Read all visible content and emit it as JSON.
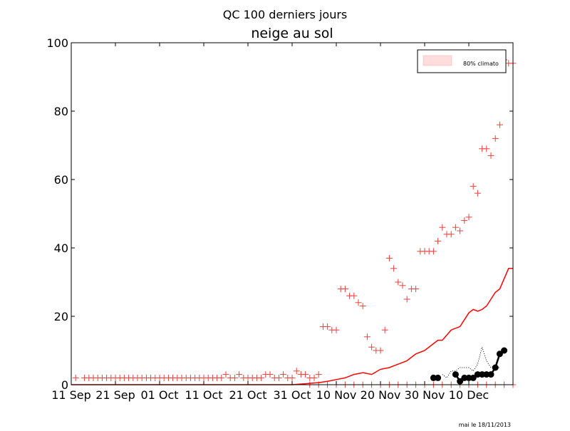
{
  "chart_data": {
    "type": "line",
    "suptitle": "QC 100 derniers jours",
    "title": "neige au sol",
    "footer_note": "mai le 18/11/2013",
    "xlabel": "",
    "ylabel": "",
    "xlim": [
      0,
      100
    ],
    "ylim": [
      0,
      100
    ],
    "x_ticks": [
      {
        "x": 0,
        "label": "11 Sep"
      },
      {
        "x": 10,
        "label": "21 Sep"
      },
      {
        "x": 20,
        "label": "01 Oct"
      },
      {
        "x": 30,
        "label": "11 Oct"
      },
      {
        "x": 40,
        "label": "21 Oct"
      },
      {
        "x": 50,
        "label": "31 Oct"
      },
      {
        "x": 60,
        "label": "10 Nov"
      },
      {
        "x": 70,
        "label": "20 Nov"
      },
      {
        "x": 80,
        "label": "30 Nov"
      },
      {
        "x": 90,
        "label": "10 Dec"
      }
    ],
    "y_ticks": [
      0,
      20,
      40,
      60,
      80,
      100
    ],
    "legend": {
      "position": "top-right",
      "entries": [
        {
          "label": "80% climato",
          "color": "#ffdddd"
        }
      ]
    },
    "colors": {
      "max_markers": "#e8403a",
      "mean_line": "#ff0000",
      "min_markers": "#e8403a",
      "observed": "#000000",
      "climato_band": "#ffdddd"
    },
    "series": [
      {
        "kind": "max_markers",
        "x": [
          1,
          3,
          4,
          5,
          6,
          7,
          8,
          9,
          10,
          11,
          12,
          13,
          14,
          15,
          16,
          17,
          18,
          19,
          20,
          21,
          22,
          23,
          24,
          25,
          26,
          27,
          28,
          29,
          30,
          31,
          32,
          33,
          34,
          35,
          36,
          37,
          38,
          39,
          40,
          41,
          42,
          43,
          44,
          45,
          46,
          47,
          48,
          49,
          50,
          51,
          52,
          53,
          54,
          55,
          56,
          57,
          58,
          59,
          60,
          61,
          62,
          63,
          64,
          65,
          66,
          67,
          68,
          69,
          70,
          71,
          72,
          73,
          74,
          75,
          76,
          77,
          78,
          79,
          80,
          81,
          82,
          83,
          84,
          85,
          86,
          87,
          88,
          89,
          90,
          91,
          92,
          93,
          94,
          95,
          96,
          97,
          98,
          99,
          100
        ],
        "y": [
          2,
          2,
          2,
          2,
          2,
          2,
          2,
          2,
          2,
          2,
          2,
          2,
          2,
          2,
          2,
          2,
          2,
          2,
          2,
          2,
          2,
          2,
          2,
          2,
          2,
          2,
          2,
          2,
          2,
          2,
          2,
          2,
          2,
          3,
          2,
          2,
          3,
          2,
          2,
          2,
          2,
          2,
          3,
          3,
          2,
          2,
          3,
          2,
          2,
          4,
          3,
          3,
          2,
          2,
          3,
          17,
          17,
          16,
          16,
          28,
          28,
          26,
          26,
          24,
          23,
          14,
          11,
          10,
          10,
          16,
          37,
          34,
          30,
          29,
          25,
          28,
          28,
          39,
          39,
          39,
          39,
          42,
          46,
          44,
          44,
          46,
          45,
          48,
          49,
          58,
          56,
          69,
          69,
          67,
          72,
          76,
          95,
          94,
          94
        ]
      },
      {
        "kind": "mean_line",
        "x": [
          0,
          10,
          20,
          30,
          40,
          50,
          53,
          56,
          58,
          60,
          62,
          64,
          66,
          68,
          70,
          72,
          74,
          76,
          78,
          80,
          82,
          83,
          84,
          86,
          88,
          89,
          90,
          91,
          92,
          93,
          94,
          95,
          96,
          97,
          98,
          99,
          100
        ],
        "y": [
          0,
          0,
          0,
          0,
          0,
          0,
          0.3,
          0.6,
          1,
          1.5,
          2,
          3,
          3.5,
          3,
          4.5,
          5,
          6,
          7,
          9,
          10,
          12,
          13,
          13,
          16,
          17,
          19,
          21,
          22,
          21.5,
          22,
          23,
          25,
          27,
          28,
          31,
          34,
          34
        ]
      },
      {
        "kind": "min_markers",
        "x": [
          54,
          56,
          58,
          60,
          62,
          64,
          66,
          68,
          70,
          72,
          74,
          76,
          78,
          80,
          82,
          84,
          86,
          88,
          90,
          92,
          94,
          96,
          98,
          100
        ],
        "y": [
          0,
          0,
          0,
          0,
          0,
          0,
          0,
          0,
          0,
          0,
          0,
          0,
          0,
          0,
          0,
          0,
          0,
          0,
          0,
          0,
          0,
          0,
          0,
          0
        ]
      },
      {
        "kind": "observed",
        "x": [
          82,
          83,
          87,
          88,
          89,
          90,
          91,
          92,
          93,
          94,
          95,
          96,
          97,
          98
        ],
        "y": [
          2,
          2,
          3,
          1,
          2,
          2,
          2,
          3,
          3,
          3,
          3,
          5,
          9,
          10
        ]
      },
      {
        "kind": "observed_dotted",
        "x": [
          84,
          85,
          86,
          87,
          88,
          89,
          90,
          91,
          92,
          93,
          94,
          95,
          96,
          97
        ],
        "y": [
          3,
          2,
          4,
          4,
          5,
          5,
          5,
          4,
          6,
          11,
          7,
          5,
          5,
          5
        ]
      }
    ]
  }
}
